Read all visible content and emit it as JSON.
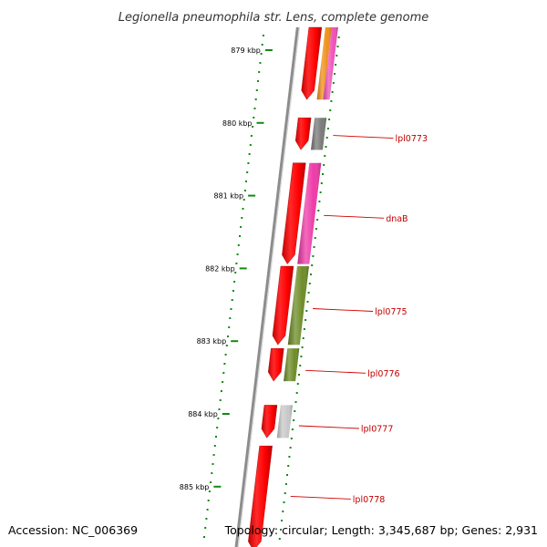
{
  "title": "Legionella pneumophila str. Lens, complete genome",
  "footer": {
    "accession": "Accession: NC_006369",
    "topology": "Topology: circular; Length: 3,345,687 bp; Genes: 2,931"
  },
  "ticks": [
    {
      "label": "879 kbp",
      "kbp": 879
    },
    {
      "label": "880 kbp",
      "kbp": 880
    },
    {
      "label": "881 kbp",
      "kbp": 881
    },
    {
      "label": "882 kbp",
      "kbp": 882
    },
    {
      "label": "883 kbp",
      "kbp": 883
    },
    {
      "label": "884 kbp",
      "kbp": 884
    },
    {
      "label": "885 kbp",
      "kbp": 885
    }
  ],
  "gene_labels": [
    {
      "label": "lpl0773",
      "kbp": 880.21
    },
    {
      "label": "dnaB",
      "kbp": 881.31
    },
    {
      "label": "lpl0775",
      "kbp": 882.59
    },
    {
      "label": "lpl0776",
      "kbp": 883.44
    },
    {
      "label": "lpl0777",
      "kbp": 884.2
    },
    {
      "label": "lpl0778",
      "kbp": 885.17
    }
  ],
  "cds_features": [
    {
      "start": 878.55,
      "end": 879.68
    },
    {
      "start": 879.93,
      "end": 880.37
    },
    {
      "start": 880.55,
      "end": 881.94
    },
    {
      "start": 881.97,
      "end": 883.05
    },
    {
      "start": 883.1,
      "end": 883.55
    },
    {
      "start": 883.88,
      "end": 884.33
    },
    {
      "start": 884.44,
      "end": 885.9
    }
  ],
  "gene_features": [
    {
      "start": 878.55,
      "end": 879.68,
      "color": "#f0901a"
    },
    {
      "start": 878.55,
      "end": 879.68,
      "color": "#f050b8"
    },
    {
      "start": 879.93,
      "end": 880.37,
      "color": "#7a7a7a"
    },
    {
      "start": 880.55,
      "end": 881.94,
      "color": "#ee3aa8"
    },
    {
      "start": 881.97,
      "end": 883.05,
      "color": "#6e8c28"
    },
    {
      "start": 883.1,
      "end": 883.55,
      "color": "#6e8c28"
    },
    {
      "start": 883.88,
      "end": 884.33,
      "color": "#c8c8c8"
    }
  ],
  "colors": {
    "cds": "#ff0000",
    "backbone": "#8c8c8c",
    "gc_skew": "#138a13",
    "label_line": "#d00000",
    "gene_label": "#c00000"
  }
}
